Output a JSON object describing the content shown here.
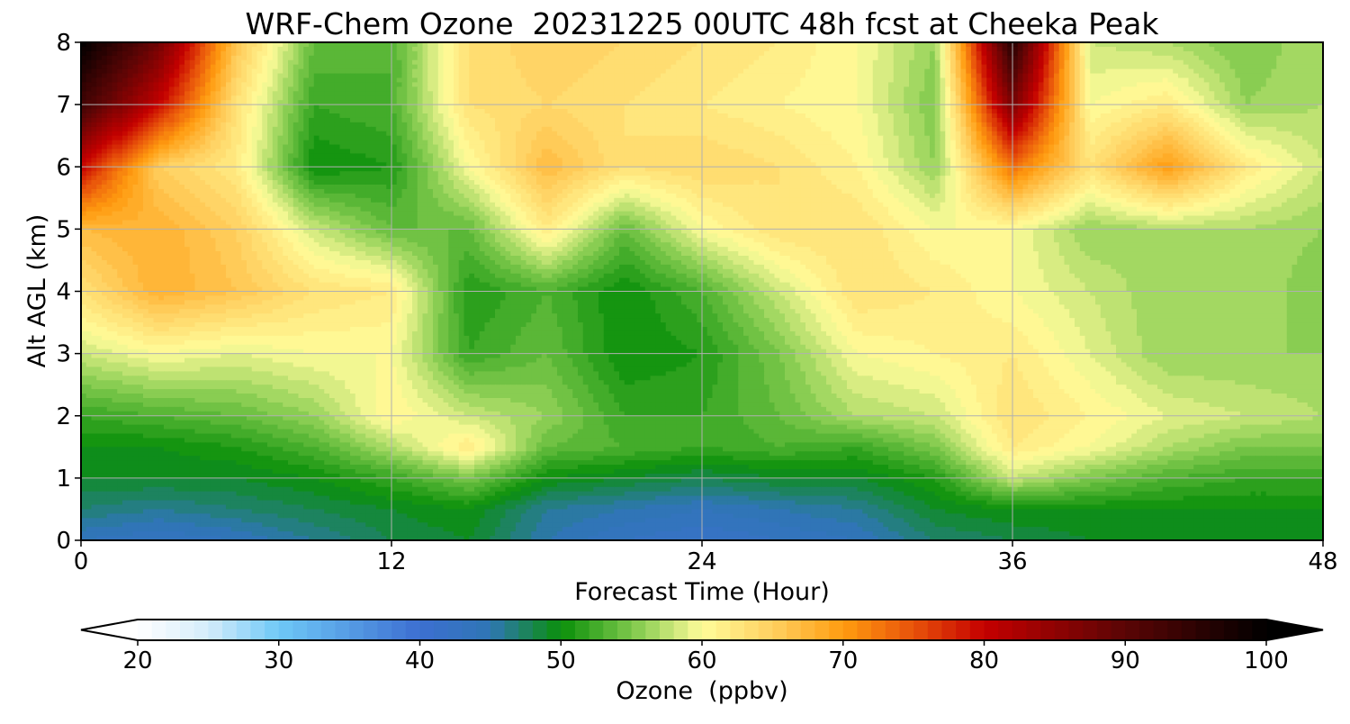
{
  "chart_data": {
    "type": "heatmap",
    "title": "WRF-Chem Ozone  20231225 00UTC 48h fcst at Cheeka Peak",
    "xlabel": "Forecast Time (Hour)",
    "ylabel": "Alt AGL (km)",
    "xlim": [
      0,
      48
    ],
    "ylim": [
      0,
      8
    ],
    "xticks": [
      0,
      12,
      24,
      36,
      48
    ],
    "yticks": [
      0,
      1,
      2,
      3,
      4,
      5,
      6,
      7,
      8
    ],
    "grid": true,
    "x": [
      0,
      3,
      6,
      9,
      12,
      15,
      18,
      21,
      24,
      27,
      30,
      33,
      36,
      39,
      42,
      45,
      48
    ],
    "y": [
      0,
      0.5,
      1,
      1.5,
      2,
      3,
      4,
      5,
      6,
      7,
      8
    ],
    "z": [
      [
        44,
        43,
        44,
        46,
        48,
        49,
        45,
        43,
        42,
        43,
        44,
        47,
        48,
        49,
        49,
        49,
        49
      ],
      [
        47,
        46,
        47,
        48,
        49,
        50,
        46,
        45,
        44,
        45,
        46,
        49,
        50,
        50,
        50,
        50,
        50
      ],
      [
        49,
        49,
        49,
        50,
        52,
        55,
        50,
        49,
        48,
        49,
        49,
        51,
        58,
        55,
        53,
        52,
        52
      ],
      [
        50,
        50,
        51,
        53,
        57,
        62,
        54,
        53,
        52,
        53,
        52,
        55,
        62,
        60,
        57,
        55,
        55
      ],
      [
        52,
        53,
        54,
        56,
        61,
        58,
        56,
        52,
        52,
        54,
        57,
        58,
        63,
        61,
        59,
        58,
        57
      ],
      [
        58,
        60,
        59,
        60,
        60,
        52,
        54,
        50,
        51,
        55,
        60,
        61,
        62,
        59,
        56,
        56,
        56
      ],
      [
        63,
        68,
        66,
        63,
        62,
        51,
        53,
        50,
        53,
        58,
        63,
        62,
        60,
        58,
        56,
        57,
        55
      ],
      [
        67,
        68,
        65,
        58,
        54,
        54,
        62,
        54,
        60,
        63,
        63,
        60,
        60,
        56,
        57,
        57,
        56
      ],
      [
        80,
        65,
        62,
        50,
        51,
        60,
        67,
        63,
        64,
        63,
        61,
        56,
        73,
        63,
        70,
        62,
        58
      ],
      [
        93,
        80,
        63,
        52,
        53,
        63,
        64,
        63,
        62,
        61,
        60,
        55,
        87,
        60,
        62,
        56,
        57
      ],
      [
        100,
        88,
        66,
        54,
        53,
        63,
        65,
        64,
        63,
        62,
        60,
        56,
        96,
        58,
        57,
        55,
        57
      ]
    ],
    "colorbar": {
      "label": "Ozone  (ppbv)",
      "min": 20,
      "max": 100,
      "ticks": [
        20,
        30,
        40,
        50,
        60,
        70,
        80,
        90,
        100
      ],
      "extend": "both",
      "placement": "bottom",
      "stops": [
        [
          20,
          "#ffffff"
        ],
        [
          25,
          "#d4ecfa"
        ],
        [
          30,
          "#6ec8f7"
        ],
        [
          40,
          "#3c6fd1"
        ],
        [
          45,
          "#2f76b4"
        ],
        [
          50,
          "#0a8f0a"
        ],
        [
          55,
          "#7cc84a"
        ],
        [
          60,
          "#fffc9a"
        ],
        [
          65,
          "#ffd060"
        ],
        [
          70,
          "#ff9c10"
        ],
        [
          75,
          "#e8520a"
        ],
        [
          80,
          "#c40000"
        ],
        [
          90,
          "#5a0505"
        ],
        [
          100,
          "#000000"
        ]
      ]
    }
  }
}
